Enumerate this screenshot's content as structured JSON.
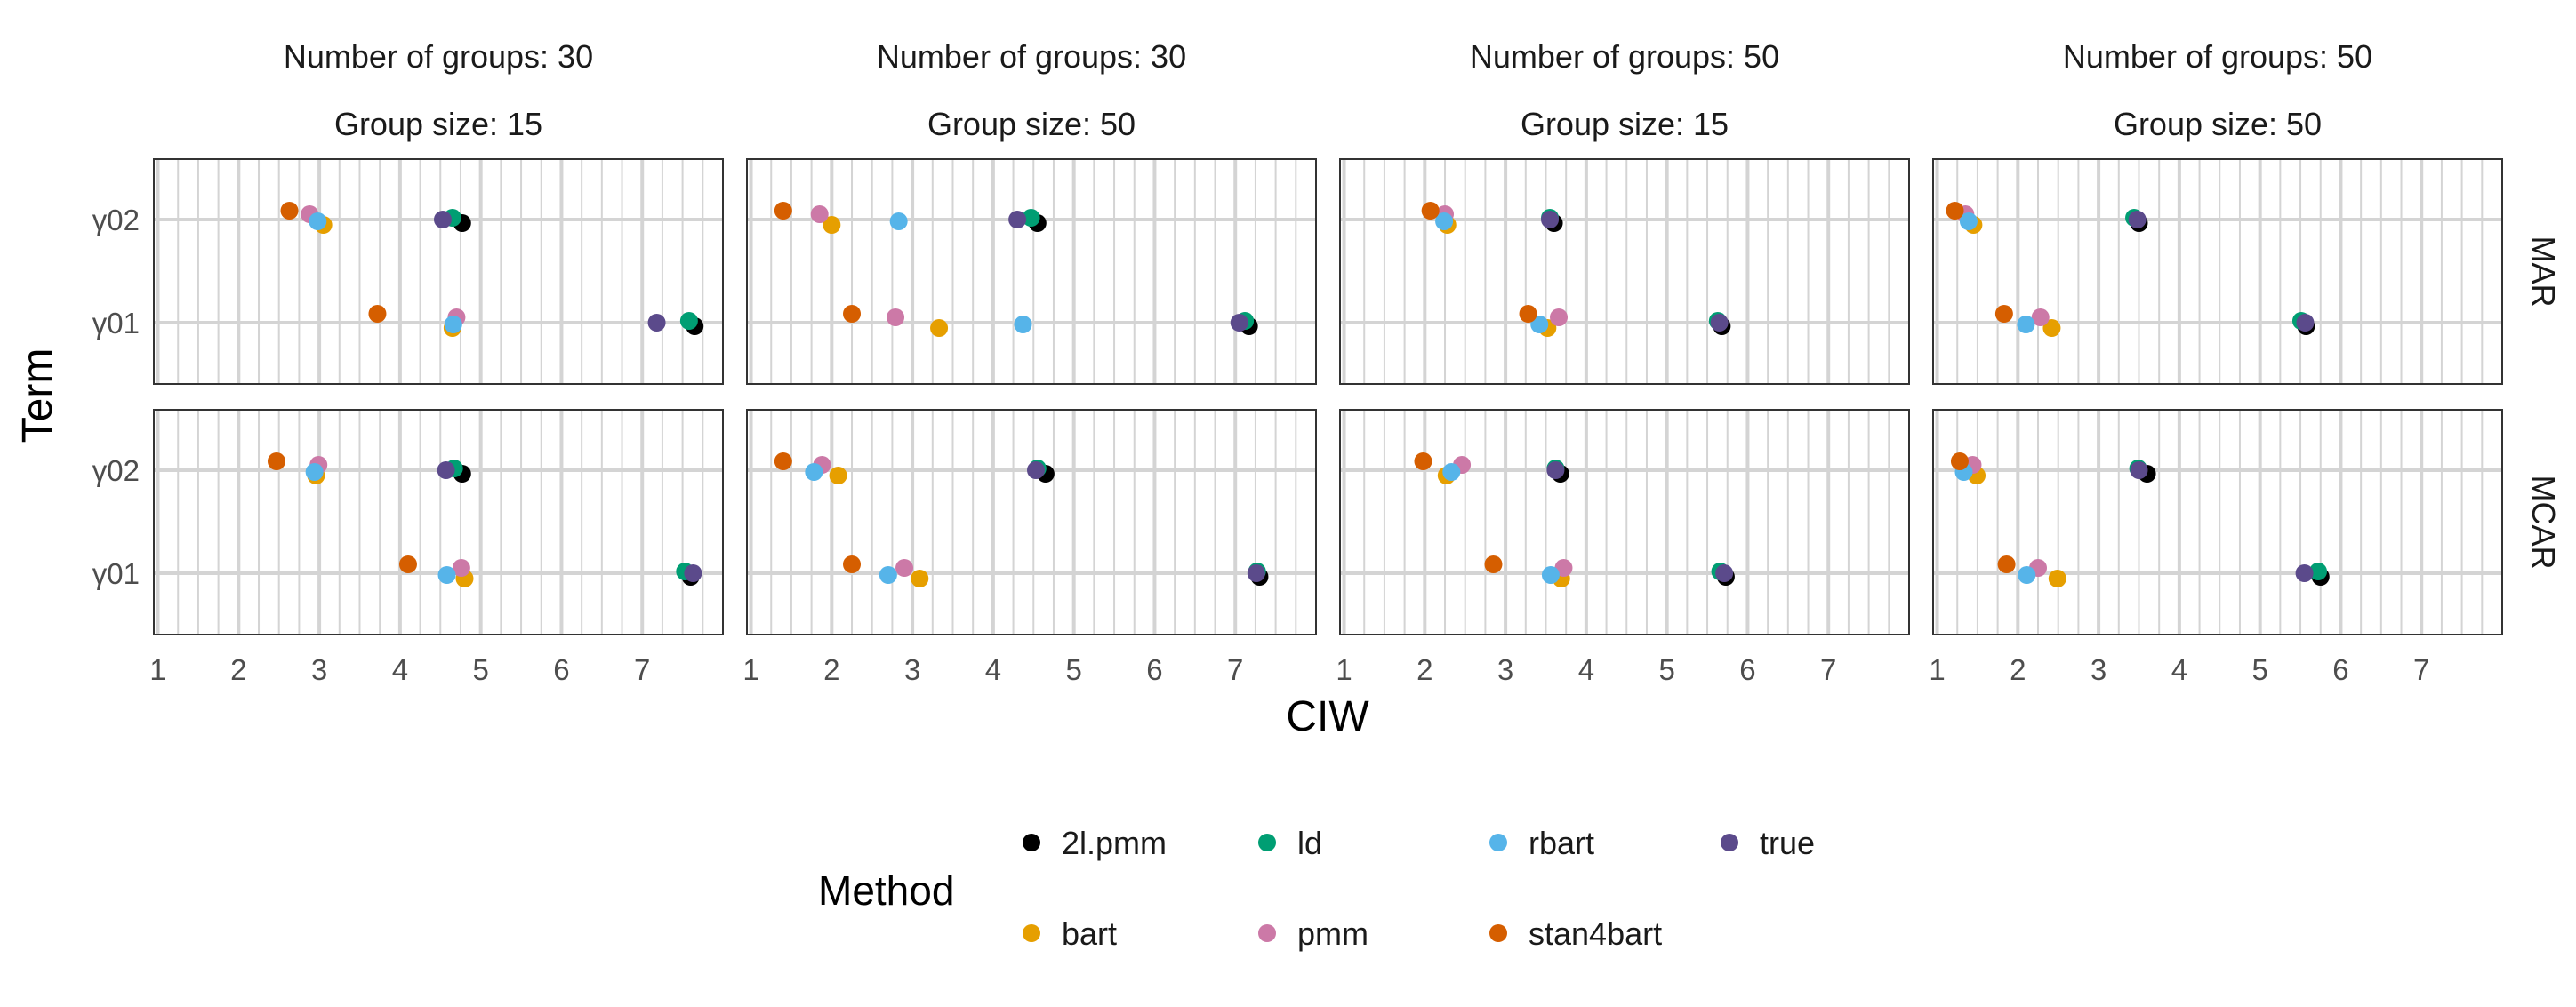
{
  "chart_data": {
    "type": "scatter",
    "xlabel": "CIW",
    "ylabel": "Term",
    "xlim": [
      0.95,
      8.0
    ],
    "x_ticks": [
      1,
      2,
      3,
      4,
      5,
      6,
      7
    ],
    "y_categories": [
      "γ01",
      "γ02"
    ],
    "grid": true,
    "legend": {
      "title": "Method",
      "position": "bottom"
    },
    "methods": [
      {
        "name": "2l.pmm",
        "color": "#000000"
      },
      {
        "name": "bart",
        "color": "#E69F00"
      },
      {
        "name": "ld",
        "color": "#009E73"
      },
      {
        "name": "pmm",
        "color": "#CC79A7"
      },
      {
        "name": "rbart",
        "color": "#56B4E9"
      },
      {
        "name": "stan4bart",
        "color": "#D55E00"
      },
      {
        "name": "true",
        "color": "#5B4A8B"
      }
    ],
    "columns": [
      {
        "groups_label": "Number of groups: 30",
        "size_label": "Group size: 15"
      },
      {
        "groups_label": "Number of groups: 30",
        "size_label": "Group size: 50"
      },
      {
        "groups_label": "Number of groups: 50",
        "size_label": "Group size: 15"
      },
      {
        "groups_label": "Number of groups: 50",
        "size_label": "Group size: 50"
      }
    ],
    "rows": [
      "MAR",
      "MCAR"
    ],
    "panels": [
      {
        "row": 0,
        "col": 0,
        "points": {
          "2l.pmm": {
            "γ02": 4.77,
            "γ01": 7.65
          },
          "bart": {
            "γ02": 3.05,
            "γ01": 4.65
          },
          "ld": {
            "γ02": 4.65,
            "γ01": 7.58
          },
          "pmm": {
            "γ02": 2.88,
            "γ01": 4.7
          },
          "rbart": {
            "γ02": 2.98,
            "γ01": 4.66
          },
          "stan4bart": {
            "γ02": 2.63,
            "γ01": 3.72
          },
          "true": {
            "γ02": 4.53,
            "γ01": 7.18
          }
        }
      },
      {
        "row": 0,
        "col": 1,
        "points": {
          "2l.pmm": {
            "γ02": 4.55,
            "γ01": 7.17
          },
          "bart": {
            "γ02": 2.0,
            "γ01": 3.33
          },
          "ld": {
            "γ02": 4.47,
            "γ01": 7.12
          },
          "pmm": {
            "γ02": 1.85,
            "γ01": 2.79
          },
          "rbart": {
            "γ02": 2.83,
            "γ01": 4.37
          },
          "stan4bart": {
            "γ02": 1.4,
            "γ01": 2.25
          },
          "true": {
            "γ02": 4.3,
            "γ01": 7.05
          }
        }
      },
      {
        "row": 0,
        "col": 2,
        "points": {
          "2l.pmm": {
            "γ02": 3.6,
            "γ01": 5.68
          },
          "bart": {
            "γ02": 2.28,
            "γ01": 3.52
          },
          "ld": {
            "γ02": 3.55,
            "γ01": 5.63
          },
          "pmm": {
            "γ02": 2.25,
            "γ01": 3.66
          },
          "rbart": {
            "γ02": 2.24,
            "γ01": 3.42
          },
          "stan4bart": {
            "γ02": 2.07,
            "γ01": 3.28
          },
          "true": {
            "γ02": 3.55,
            "γ01": 5.65
          }
        }
      },
      {
        "row": 0,
        "col": 3,
        "points": {
          "2l.pmm": {
            "γ02": 3.5,
            "γ01": 5.57
          },
          "bart": {
            "γ02": 1.45,
            "γ01": 2.42
          },
          "ld": {
            "γ02": 3.44,
            "γ01": 5.51
          },
          "pmm": {
            "γ02": 1.35,
            "γ01": 2.28
          },
          "rbart": {
            "γ02": 1.39,
            "γ01": 2.1
          },
          "stan4bart": {
            "γ02": 1.22,
            "γ01": 1.83
          },
          "true": {
            "γ02": 3.48,
            "γ01": 5.56
          }
        }
      },
      {
        "row": 1,
        "col": 0,
        "points": {
          "2l.pmm": {
            "γ02": 4.77,
            "γ01": 7.6
          },
          "bart": {
            "γ02": 2.96,
            "γ01": 4.8
          },
          "ld": {
            "γ02": 4.67,
            "γ01": 7.53
          },
          "pmm": {
            "γ02": 2.99,
            "γ01": 4.76
          },
          "rbart": {
            "γ02": 2.94,
            "γ01": 4.58
          },
          "stan4bart": {
            "γ02": 2.47,
            "γ01": 4.1
          },
          "true": {
            "γ02": 4.57,
            "γ01": 7.63
          }
        }
      },
      {
        "row": 1,
        "col": 1,
        "points": {
          "2l.pmm": {
            "γ02": 4.65,
            "γ01": 7.3
          },
          "bart": {
            "γ02": 2.08,
            "γ01": 3.09
          },
          "ld": {
            "γ02": 4.55,
            "γ01": 7.27
          },
          "pmm": {
            "γ02": 1.88,
            "γ01": 2.9
          },
          "rbart": {
            "γ02": 1.78,
            "γ01": 2.7
          },
          "stan4bart": {
            "γ02": 1.4,
            "γ01": 2.25
          },
          "true": {
            "γ02": 4.53,
            "γ01": 7.26
          }
        }
      },
      {
        "row": 1,
        "col": 2,
        "points": {
          "2l.pmm": {
            "γ02": 3.68,
            "γ01": 5.73
          },
          "bart": {
            "γ02": 2.27,
            "γ01": 3.69
          },
          "ld": {
            "γ02": 3.62,
            "γ01": 5.66
          },
          "pmm": {
            "γ02": 2.46,
            "γ01": 3.72
          },
          "rbart": {
            "γ02": 2.33,
            "γ01": 3.56
          },
          "stan4bart": {
            "γ02": 1.98,
            "γ01": 2.85
          },
          "true": {
            "γ02": 3.62,
            "γ01": 5.71
          }
        }
      },
      {
        "row": 1,
        "col": 3,
        "points": {
          "2l.pmm": {
            "γ02": 3.6,
            "γ01": 5.75
          },
          "bart": {
            "γ02": 1.49,
            "γ01": 2.49
          },
          "ld": {
            "γ02": 3.49,
            "γ01": 5.72
          },
          "pmm": {
            "γ02": 1.44,
            "γ01": 2.25
          },
          "rbart": {
            "γ02": 1.33,
            "γ01": 2.11
          },
          "stan4bart": {
            "γ02": 1.28,
            "γ01": 1.86
          },
          "true": {
            "γ02": 3.5,
            "γ01": 5.55
          }
        }
      }
    ]
  }
}
